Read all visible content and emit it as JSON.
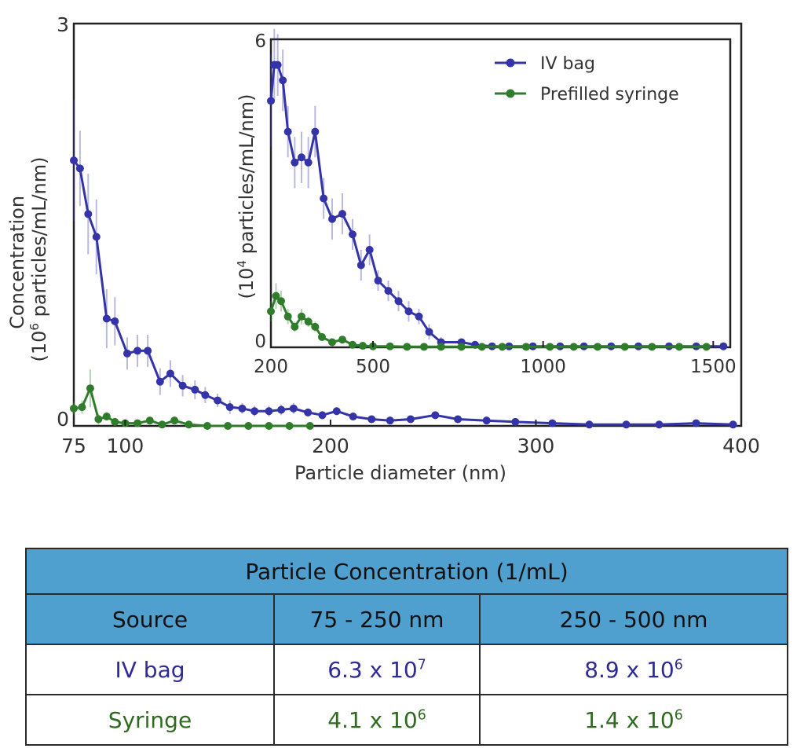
{
  "chart_data": [
    {
      "type": "line",
      "xlabel": "Particle diameter (nm)",
      "ylabel_line1": "Concentration",
      "ylabel_line2_pre": "(10",
      "ylabel_line2_sup": "6",
      "ylabel_line2_post": " particles/mL/nm)",
      "xlim": [
        75,
        400
      ],
      "ylim": [
        0,
        3
      ],
      "xtick_labels": [
        {
          "label": "75",
          "value": 75
        },
        {
          "label": "100",
          "value": 100
        },
        {
          "label": "200",
          "value": 200
        },
        {
          "label": "300",
          "value": 300
        },
        {
          "label": "400",
          "value": 400
        }
      ],
      "ytick_labels": [
        {
          "label": "0",
          "value": 0
        },
        {
          "label": "3",
          "value": 3
        }
      ],
      "series": [
        {
          "color": "#3434a8",
          "x": [
            75,
            78,
            82,
            86,
            91,
            95,
            101,
            106,
            111,
            117,
            122,
            128,
            134,
            139,
            145,
            151,
            157,
            163,
            170,
            176,
            182,
            189,
            196,
            203,
            211,
            220,
            229,
            239,
            251,
            262,
            276,
            290,
            308,
            326,
            344,
            360,
            378,
            396
          ],
          "y": [
            1.98,
            1.92,
            1.58,
            1.41,
            0.8,
            0.78,
            0.54,
            0.56,
            0.56,
            0.33,
            0.39,
            0.3,
            0.27,
            0.23,
            0.19,
            0.14,
            0.13,
            0.11,
            0.11,
            0.12,
            0.13,
            0.1,
            0.08,
            0.11,
            0.07,
            0.05,
            0.04,
            0.05,
            0.08,
            0.05,
            0.04,
            0.03,
            0.02,
            0.01,
            0.01,
            0.01,
            0.02,
            0.01
          ],
          "err": [
            0.45,
            0.28,
            0.3,
            0.28,
            0.22,
            0.18,
            0.12,
            0.12,
            0.12,
            0.1,
            0.1,
            0.08,
            0.07,
            0.06,
            0.05,
            0.05,
            0.04,
            0.04,
            0.04,
            0.04,
            0.04,
            0.03,
            0.03,
            0.03,
            0.03,
            0.02,
            0.02,
            0.02,
            0.02,
            0.02,
            0.02,
            0.01,
            0.01,
            0.01,
            0.01,
            0.01,
            0.01,
            0.01
          ]
        },
        {
          "color": "#2f7d2a",
          "x": [
            75,
            79,
            83,
            87,
            91,
            95,
            100,
            106,
            112,
            118,
            124,
            131,
            140,
            150,
            160,
            170,
            180,
            190
          ],
          "y": [
            0.13,
            0.14,
            0.28,
            0.05,
            0.07,
            0.03,
            0.02,
            0.02,
            0.04,
            0.01,
            0.04,
            0.01,
            0.0,
            0.0,
            0.0,
            0.0,
            0.0,
            0.0
          ],
          "err": [
            0.05,
            0.05,
            0.14,
            0.04,
            0.03,
            0.02,
            0.02,
            0.02,
            0.02,
            0.01,
            0.02,
            0.01,
            0.0,
            0.0,
            0.0,
            0.0,
            0.0,
            0.0
          ]
        }
      ]
    },
    {
      "type": "line",
      "inset": true,
      "ylabel_pre": "(10",
      "ylabel_sup": "4",
      "ylabel_post": " particles/mL/nm)",
      "xlim": [
        200,
        1550
      ],
      "ylim": [
        0,
        6
      ],
      "legend_position": "top-right",
      "xtick_labels": [
        {
          "label": "200",
          "value": 200
        },
        {
          "label": "500",
          "value": 500
        },
        {
          "label": "1000",
          "value": 1000
        },
        {
          "label": "1500",
          "value": 1500
        }
      ],
      "ytick_labels": [
        {
          "label": "0",
          "value": 0
        },
        {
          "label": "6",
          "value": 6
        }
      ],
      "series": [
        {
          "name": "IV bag",
          "color": "#3434a8",
          "x": [
            200,
            210,
            220,
            235,
            250,
            270,
            290,
            310,
            330,
            355,
            380,
            410,
            440,
            465,
            490,
            515,
            545,
            575,
            605,
            635,
            665,
            700,
            760,
            800,
            850,
            900,
            970,
            1050,
            1120,
            1200,
            1280,
            1370,
            1450,
            1530
          ],
          "y": [
            4.8,
            5.5,
            5.5,
            5.2,
            4.2,
            3.6,
            3.7,
            3.6,
            4.2,
            2.9,
            2.5,
            2.6,
            2.2,
            1.6,
            1.9,
            1.3,
            1.1,
            0.9,
            0.7,
            0.6,
            0.3,
            0.1,
            0.1,
            0.05,
            0.02,
            0.02,
            0.02,
            0.02,
            0.02,
            0.02,
            0.02,
            0.02,
            0.02,
            0.02
          ],
          "err": [
            0.9,
            0.7,
            0.6,
            0.6,
            0.5,
            0.5,
            0.5,
            0.5,
            0.5,
            0.4,
            0.4,
            0.4,
            0.3,
            0.3,
            0.3,
            0.2,
            0.2,
            0.2,
            0.2,
            0.15,
            0.15,
            0.1,
            0.05,
            0.03,
            0.02,
            0.02,
            0.02,
            0.02,
            0.02,
            0.02,
            0.02,
            0.02,
            0.02,
            0.02
          ]
        },
        {
          "name": "Prefilled syringe",
          "color": "#2f7d2a",
          "x": [
            200,
            215,
            230,
            250,
            270,
            290,
            310,
            330,
            350,
            380,
            410,
            440,
            470,
            500,
            550,
            600,
            650,
            700,
            760,
            820,
            880,
            950,
            1020,
            1090,
            1160,
            1240,
            1320,
            1400,
            1480
          ],
          "y": [
            0.7,
            1.0,
            0.9,
            0.6,
            0.4,
            0.6,
            0.5,
            0.4,
            0.2,
            0.1,
            0.15,
            0.05,
            0.03,
            0.02,
            0.02,
            0.01,
            0.01,
            0.01,
            0.01,
            0.01,
            0.01,
            0.01,
            0.01,
            0.01,
            0.01,
            0.01,
            0.01,
            0.01,
            0.01
          ],
          "err": [
            0.2,
            0.25,
            0.2,
            0.15,
            0.1,
            0.15,
            0.1,
            0.1,
            0.06,
            0.04,
            0.05,
            0.03,
            0.02,
            0.01,
            0.01,
            0.01,
            0.01,
            0.01,
            0.01,
            0.01,
            0.01,
            0.01,
            0.01,
            0.01,
            0.01,
            0.01,
            0.01,
            0.01,
            0.01
          ]
        }
      ]
    }
  ],
  "table": {
    "title": "Particle Concentration (1/mL)",
    "headers": [
      "Source",
      "75 - 250 nm",
      "250 - 500 nm"
    ],
    "rows": [
      {
        "source": "IV bag",
        "range1_base": "6.3 x 10",
        "range1_exp": "7",
        "range2_base": "8.9 x 10",
        "range2_exp": "6"
      },
      {
        "source": "Syringe",
        "range1_base": "4.1 x 10",
        "range1_exp": "6",
        "range2_base": "1.4 x 10",
        "range2_exp": "6"
      }
    ]
  },
  "colors": {
    "iv_bag": "#3434a8",
    "syringe": "#2f7d2a",
    "table_header": "#4f9fcf",
    "iv_text": "#2e2b96",
    "syringe_text": "#2f6b1f"
  }
}
